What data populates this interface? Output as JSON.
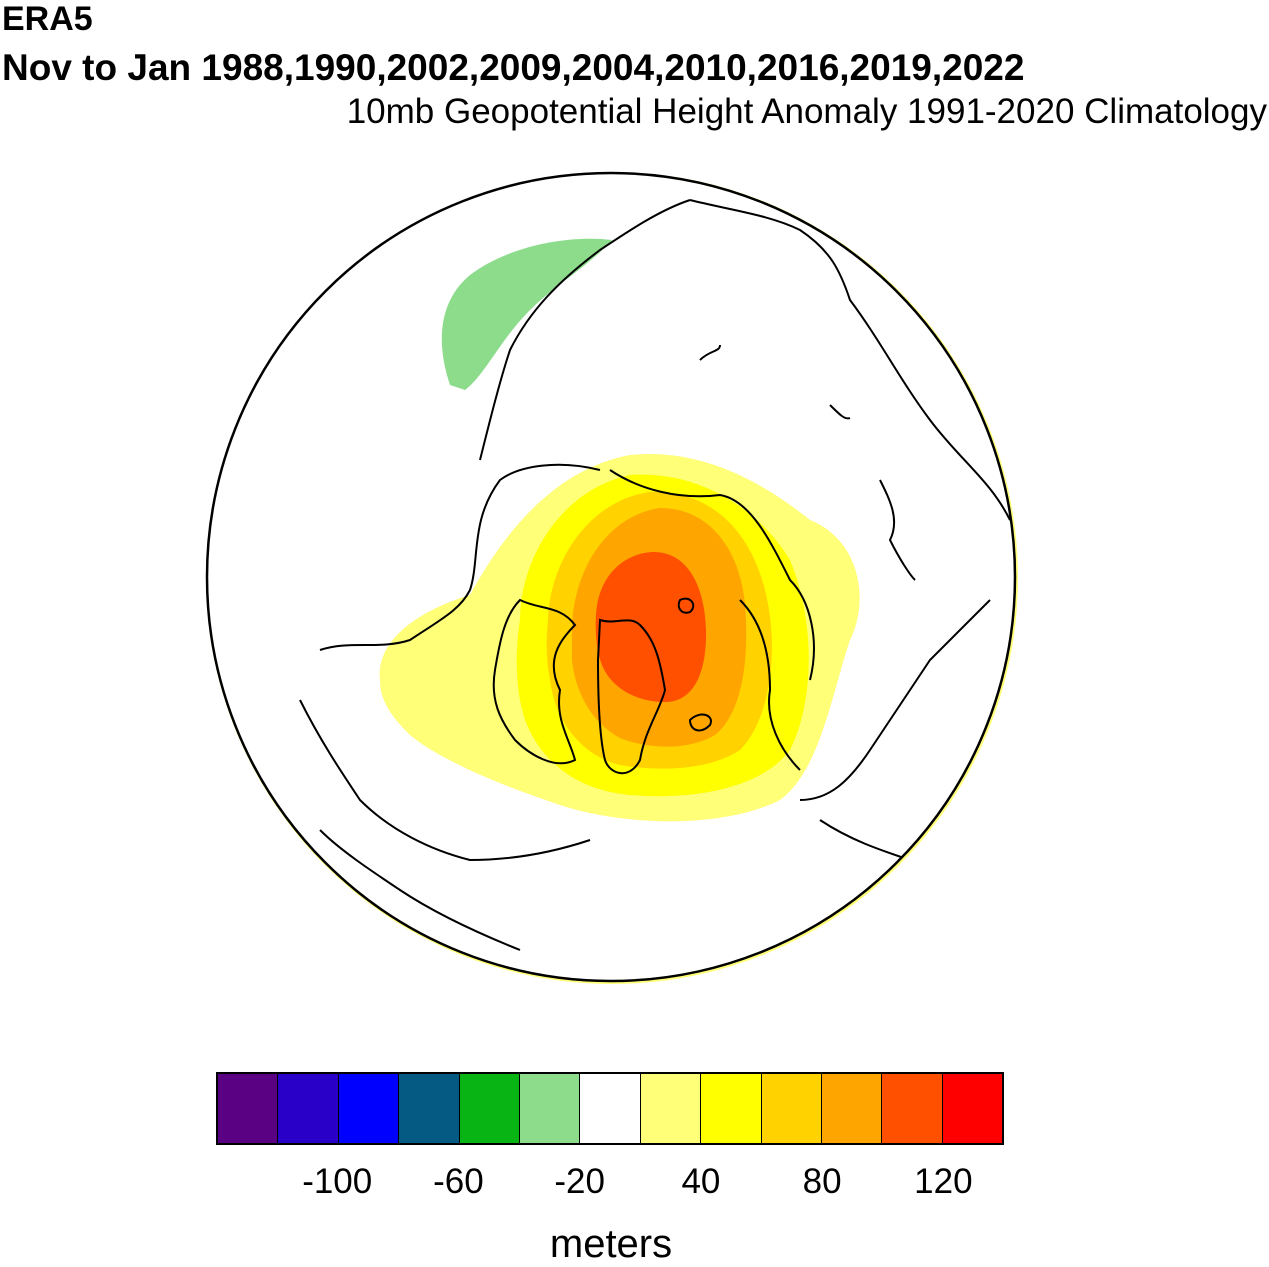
{
  "title": {
    "dataset": "ERA5",
    "period": "Nov to Jan 1988,1990,2002,2009,2004,2010,2016,2019,2022",
    "subtitle": "10mb Geopotential Height Anomaly  1991-2020 Climatology"
  },
  "colorbar": {
    "colors": [
      "#5a0082",
      "#2800c8",
      "#0000ff",
      "#045a82",
      "#08b414",
      "#8cdc8c",
      "#ffffff",
      "#ffff78",
      "#ffff00",
      "#ffd200",
      "#ffa500",
      "#ff5000",
      "#ff0000"
    ],
    "labels": [
      {
        "text": "-100",
        "boundary": 2
      },
      {
        "text": "-60",
        "boundary": 4
      },
      {
        "text": "-20",
        "boundary": 6
      },
      {
        "text": "40",
        "boundary": 8
      },
      {
        "text": "80",
        "boundary": 10
      },
      {
        "text": "120",
        "boundary": 12
      }
    ],
    "units": "meters"
  }
}
